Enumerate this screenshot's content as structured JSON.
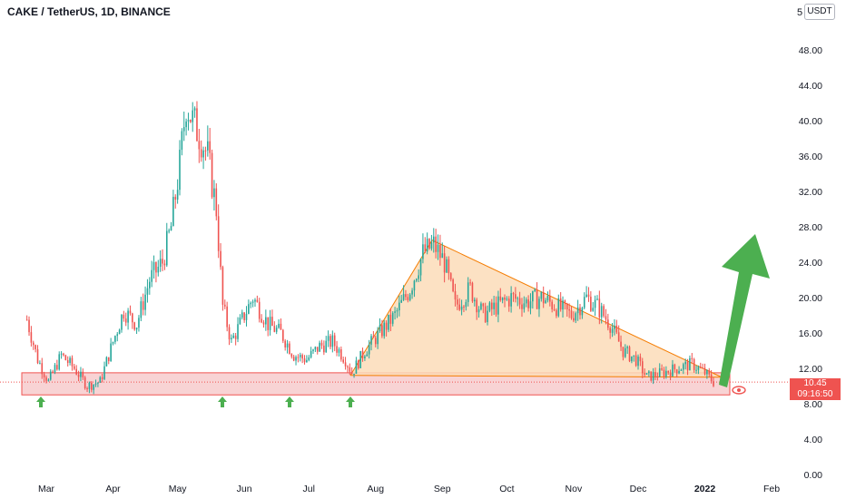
{
  "header": {
    "title": "CAKE / TetherUS, 1D, BINANCE",
    "unit_badge": "USDT",
    "partial_tick": "5"
  },
  "price_badge": {
    "price": "10.45",
    "countdown": "09:16:50"
  },
  "colors": {
    "up": "#26a69a",
    "down": "#ef5350",
    "triangle_fill": "#fcdcb9",
    "triangle_line": "#f57c00",
    "support_fill": "#f8d3d4",
    "support_line": "#ef5350",
    "arrow": "#4caf50"
  },
  "chart_data": {
    "type": "candlestick",
    "title": "CAKE / TetherUS, 1D, BINANCE",
    "ylim": [
      0,
      52
    ],
    "yticks": [
      "0.00",
      "4.00",
      "8.00",
      "12.00",
      "16.00",
      "20.00",
      "24.00",
      "28.00",
      "32.00",
      "36.00",
      "40.00",
      "44.00",
      "48.00"
    ],
    "xticks": [
      "Mar",
      "Apr",
      "May",
      "Jun",
      "Jul",
      "Aug",
      "Sep",
      "Oct",
      "Nov",
      "Dec",
      "2022",
      "Feb"
    ],
    "last_price": 10.45,
    "close_series": [
      {
        "date": "2021-02-20",
        "close": 17.5
      },
      {
        "date": "2021-02-25",
        "close": 13.0
      },
      {
        "date": "2021-03-02",
        "close": 10.5
      },
      {
        "date": "2021-03-08",
        "close": 13.5
      },
      {
        "date": "2021-03-14",
        "close": 12.0
      },
      {
        "date": "2021-03-20",
        "close": 10.0
      },
      {
        "date": "2021-03-26",
        "close": 10.5
      },
      {
        "date": "2021-04-01",
        "close": 15.0
      },
      {
        "date": "2021-04-06",
        "close": 18.5
      },
      {
        "date": "2021-04-12",
        "close": 17.0
      },
      {
        "date": "2021-04-18",
        "close": 22.0
      },
      {
        "date": "2021-04-24",
        "close": 24.0
      },
      {
        "date": "2021-04-28",
        "close": 28.0
      },
      {
        "date": "2021-05-02",
        "close": 35.0
      },
      {
        "date": "2021-05-05",
        "close": 42.0
      },
      {
        "date": "2021-05-08",
        "close": 40.0
      },
      {
        "date": "2021-05-12",
        "close": 38.0
      },
      {
        "date": "2021-05-15",
        "close": 36.0
      },
      {
        "date": "2021-05-19",
        "close": 30.0
      },
      {
        "date": "2021-05-22",
        "close": 19.0
      },
      {
        "date": "2021-05-26",
        "close": 15.0
      },
      {
        "date": "2021-06-01",
        "close": 18.0
      },
      {
        "date": "2021-06-05",
        "close": 20.0
      },
      {
        "date": "2021-06-12",
        "close": 17.0
      },
      {
        "date": "2021-06-18",
        "close": 16.0
      },
      {
        "date": "2021-06-24",
        "close": 13.5
      },
      {
        "date": "2021-06-30",
        "close": 13.0
      },
      {
        "date": "2021-07-06",
        "close": 14.5
      },
      {
        "date": "2021-07-12",
        "close": 15.0
      },
      {
        "date": "2021-07-18",
        "close": 13.0
      },
      {
        "date": "2021-07-21",
        "close": 11.5
      },
      {
        "date": "2021-07-27",
        "close": 14.0
      },
      {
        "date": "2021-08-03",
        "close": 16.0
      },
      {
        "date": "2021-08-10",
        "close": 18.0
      },
      {
        "date": "2021-08-17",
        "close": 21.0
      },
      {
        "date": "2021-08-23",
        "close": 25.0
      },
      {
        "date": "2021-08-28",
        "close": 26.0
      },
      {
        "date": "2021-09-02",
        "close": 24.0
      },
      {
        "date": "2021-09-07",
        "close": 19.0
      },
      {
        "date": "2021-09-14",
        "close": 21.0
      },
      {
        "date": "2021-09-20",
        "close": 18.0
      },
      {
        "date": "2021-09-26",
        "close": 19.0
      },
      {
        "date": "2021-10-03",
        "close": 20.0
      },
      {
        "date": "2021-10-10",
        "close": 19.5
      },
      {
        "date": "2021-10-17",
        "close": 20.0
      },
      {
        "date": "2021-10-24",
        "close": 19.0
      },
      {
        "date": "2021-10-31",
        "close": 18.0
      },
      {
        "date": "2021-11-07",
        "close": 20.0
      },
      {
        "date": "2021-11-12",
        "close": 19.0
      },
      {
        "date": "2021-11-18",
        "close": 17.0
      },
      {
        "date": "2021-11-24",
        "close": 14.0
      },
      {
        "date": "2021-11-30",
        "close": 13.0
      },
      {
        "date": "2021-12-05",
        "close": 11.0
      },
      {
        "date": "2021-12-12",
        "close": 11.5
      },
      {
        "date": "2021-12-19",
        "close": 12.0
      },
      {
        "date": "2021-12-26",
        "close": 12.5
      },
      {
        "date": "2022-01-01",
        "close": 11.5
      },
      {
        "date": "2022-01-05",
        "close": 10.45
      }
    ],
    "support_zone": [
      9.0,
      11.5
    ],
    "descending_triangle": {
      "apex_high": 26.5,
      "base": 11.0
    }
  }
}
